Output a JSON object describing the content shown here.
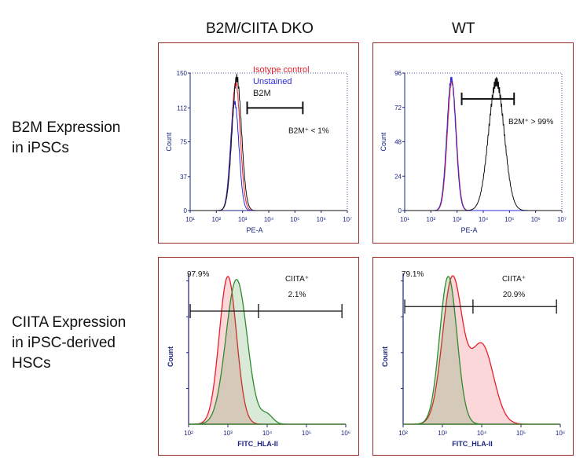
{
  "headers": {
    "col1": "B2M/CIITA DKO",
    "col2": "WT"
  },
  "row_labels": {
    "b2m": [
      "B2M Expression",
      "in iPSCs"
    ],
    "ciita": [
      "CIITA Expression",
      "in iPSC-derived",
      "HSCs"
    ]
  },
  "colors": {
    "red": "#e8202a",
    "blue": "#2b2bd9",
    "black": "#111111",
    "green": "#2e8b2e",
    "frame": "#9b2a2a",
    "axis": "#1a237e"
  },
  "chart_data": [
    {
      "id": "b2m-dko",
      "type": "line",
      "title": "",
      "xlabel": "PE-A",
      "ylabel": "Count",
      "x_scale": "log",
      "xlim": [
        10,
        10000000
      ],
      "ylim": [
        0,
        150
      ],
      "y_ticks": [
        0,
        37,
        75,
        112,
        150
      ],
      "x_ticks": [
        10,
        100,
        1000,
        10000,
        100000,
        1000000,
        10000000
      ],
      "x_tick_labels": [
        "10¹",
        "10²",
        "10³",
        "10⁴",
        "10⁵",
        "10⁶",
        "10⁷"
      ],
      "legend": [
        "Isotype control",
        "Unstained",
        "B2M"
      ],
      "series": [
        {
          "name": "Isotype control",
          "color": "#e8202a",
          "peak_log": 2.74,
          "sigma": 0.17,
          "peak": 140
        },
        {
          "name": "Unstained",
          "color": "#2b2bd9",
          "peak_log": 2.7,
          "sigma": 0.16,
          "peak": 118
        },
        {
          "name": "B2M",
          "color": "#111111",
          "peak_log": 2.78,
          "sigma": 0.18,
          "peak": 145
        }
      ],
      "gate": {
        "from": 1500,
        "to": 200000,
        "level": 112,
        "label": "B2M⁺ < 1%"
      }
    },
    {
      "id": "b2m-wt",
      "type": "line",
      "title": "",
      "xlabel": "PE-A",
      "ylabel": "Count",
      "x_scale": "log",
      "xlim": [
        10,
        10000000
      ],
      "ylim": [
        0,
        96
      ],
      "y_ticks": [
        0,
        24,
        48,
        72,
        96
      ],
      "x_ticks": [
        10,
        100,
        1000,
        10000,
        100000,
        1000000,
        10000000
      ],
      "x_tick_labels": [
        "10¹",
        "10²",
        "10³",
        "10⁴",
        "10⁵",
        "10⁶",
        "10⁷"
      ],
      "legend": [],
      "series": [
        {
          "name": "Isotype control",
          "color": "#e8202a",
          "peak_log": 2.8,
          "sigma": 0.17,
          "peak": 90
        },
        {
          "name": "Unstained",
          "color": "#2b2bd9",
          "peak_log": 2.78,
          "sigma": 0.17,
          "peak": 92
        },
        {
          "name": "B2M",
          "color": "#111111",
          "peak_log": 4.5,
          "sigma": 0.3,
          "peak": 90
        }
      ],
      "gate": {
        "from": 1500,
        "to": 150000,
        "level": 78,
        "label": "B2M⁺ > 99%"
      }
    },
    {
      "id": "ciita-dko",
      "type": "area",
      "title": "",
      "xlabel": "FITC_HLA-II",
      "ylabel": "Count",
      "x_scale": "log",
      "xlim": [
        100,
        1000000
      ],
      "ylim": [
        0,
        100
      ],
      "x_ticks": [
        100,
        1000,
        10000,
        100000,
        1000000
      ],
      "x_tick_labels": [
        "10²",
        "10³",
        "10⁴",
        "10⁵",
        "10⁶"
      ],
      "series": [
        {
          "name": "Isotype control",
          "color": "#e8202a",
          "peak_log": 3.0,
          "sigma": 0.22,
          "peak": 98
        },
        {
          "name": "HLA-II",
          "color": "#2e8b2e",
          "peak_log": 3.22,
          "sigma": 0.27,
          "peak": 96
        }
      ],
      "gate": {
        "from": 110,
        "to": 6000,
        "to2": 800000,
        "level": 75
      },
      "labels": {
        "left": "97.9%",
        "right_title": "CIITA⁺",
        "right_value": "2.1%"
      }
    },
    {
      "id": "ciita-wt",
      "type": "area",
      "title": "",
      "xlabel": "FITC_HLA-II",
      "ylabel": "Count",
      "x_scale": "log",
      "xlim": [
        100,
        1000000
      ],
      "ylim": [
        0,
        100
      ],
      "x_ticks": [
        100,
        1000,
        10000,
        100000,
        1000000
      ],
      "x_tick_labels": [
        "10²",
        "10³",
        "10⁴",
        "10⁵",
        "10⁶"
      ],
      "series": [
        {
          "name": "HLA-II",
          "color": "#e8202a",
          "peak_log": 3.25,
          "sigma": 0.25,
          "peak": 96
        },
        {
          "name": "Isotype control",
          "color": "#2e8b2e",
          "peak_log": 3.15,
          "sigma": 0.22,
          "peak": 98
        }
      ],
      "gate": {
        "from": 110,
        "to": 6000,
        "to2": 800000,
        "level": 78
      },
      "labels": {
        "left": "79.1%",
        "right_title": "CIITA⁺",
        "right_value": "20.9%"
      }
    }
  ]
}
